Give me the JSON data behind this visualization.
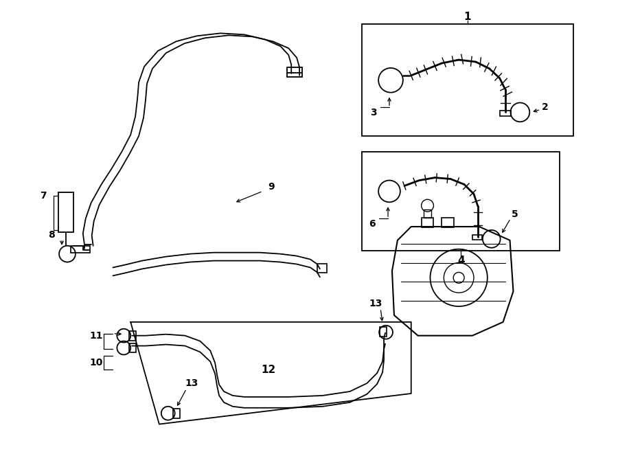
{
  "bg_color": "#ffffff",
  "line_color": "#000000",
  "lw_main": 1.3,
  "lw_thin": 0.8,
  "fig_w": 9.0,
  "fig_h": 6.61,
  "dpi": 100
}
